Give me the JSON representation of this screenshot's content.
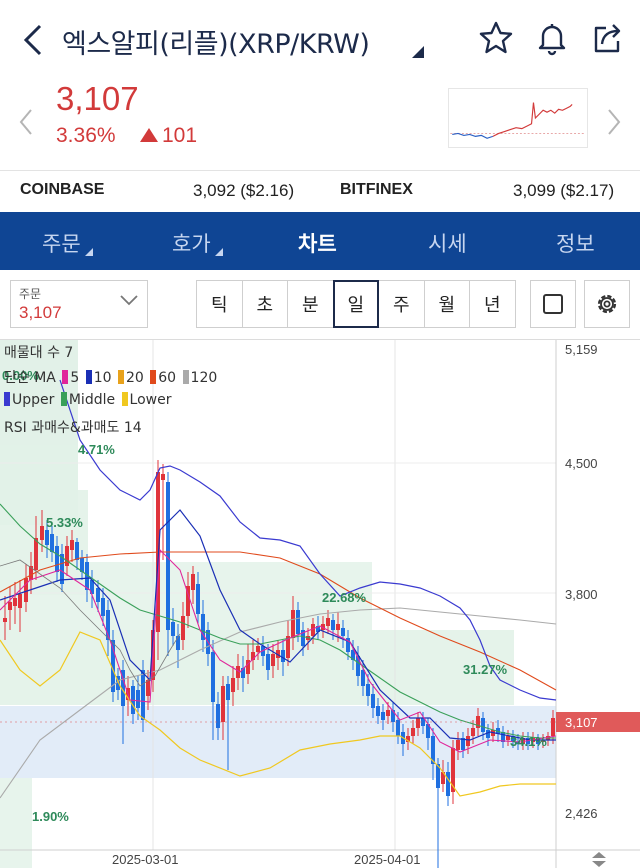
{
  "header": {
    "title": "엑스알피(리플)(XRP/KRW)"
  },
  "icons": {
    "back": "chevron-left-icon",
    "favorite": "star-outline-icon",
    "alert": "bell-icon",
    "share": "share-icon",
    "settings": "gear-icon"
  },
  "quote": {
    "price": "3,107",
    "change_pct": "3.36%",
    "change_abs": "101",
    "direction": "up"
  },
  "exchanges": [
    {
      "name": "COINBASE",
      "value": "3,092 ($2.16)"
    },
    {
      "name": "BITFINEX",
      "value": "3,099 ($2.17)"
    }
  ],
  "tabs": [
    {
      "label": "주문",
      "dropdown": true
    },
    {
      "label": "호가",
      "dropdown": true
    },
    {
      "label": "차트",
      "active": true
    },
    {
      "label": "시세"
    },
    {
      "label": "정보"
    }
  ],
  "order_select": {
    "label": "주문",
    "value": "3,107"
  },
  "periods": [
    "틱",
    "초",
    "분",
    "일",
    "주",
    "월",
    "년"
  ],
  "selected_period": "일",
  "chart": {
    "legend_volume": "매물대 수 7",
    "legend_ma_prefix": "단순 MA",
    "ma_items": [
      {
        "label": "5",
        "color": "#e0269a"
      },
      {
        "label": "10",
        "color": "#1a2fb5"
      },
      {
        "label": "20",
        "color": "#e8a21c"
      },
      {
        "label": "60",
        "color": "#e04a1c"
      },
      {
        "label": "120",
        "color": "#aaaaaa"
      }
    ],
    "bb_items": [
      {
        "label": "Upper",
        "color": "#3a3ad0"
      },
      {
        "label": "Middle",
        "color": "#3aa05a"
      },
      {
        "label": "Lower",
        "color": "#f0c820"
      }
    ],
    "legend_rsi": "RSI 과매수&과매도 14",
    "y_ticks": [
      "5,159",
      "4,500",
      "3,800",
      "2,426"
    ],
    "current_tag": "3,107",
    "x_ticks": [
      "2025-03-01",
      "2025-04-01"
    ],
    "volume_profile_pcts": [
      "0.00%",
      "4.71%",
      "5.33%",
      "22.68%",
      "31.27%",
      "34.1%",
      "1.90%"
    ],
    "colors": {
      "up": "#e0343c",
      "down": "#1f6fe0",
      "tag": "#e05a5a"
    }
  }
}
